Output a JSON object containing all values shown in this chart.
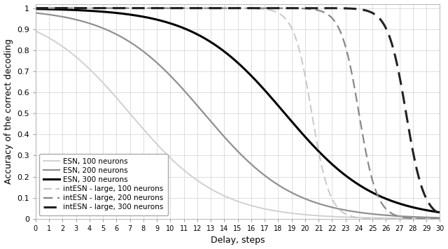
{
  "title": "",
  "xlabel": "Delay, steps",
  "ylabel": "Accuracy of the correct decoding",
  "xlim": [
    0,
    30
  ],
  "ylim": [
    0,
    1.02
  ],
  "yticks": [
    0,
    0.1,
    0.2,
    0.3,
    0.4,
    0.5,
    0.6,
    0.7,
    0.8,
    0.9,
    1.0
  ],
  "ytick_labels": [
    "0",
    "0.1",
    "0.2",
    "0.3",
    "0.4",
    "0.5",
    "0.6",
    "0.7",
    "0.8",
    "0.9",
    "1"
  ],
  "xticks": [
    0,
    1,
    2,
    3,
    4,
    5,
    6,
    7,
    8,
    9,
    10,
    11,
    12,
    13,
    14,
    15,
    16,
    17,
    18,
    19,
    20,
    21,
    22,
    23,
    24,
    25,
    26,
    27,
    28,
    29,
    30
  ],
  "series": [
    {
      "label": "ESN, 100 neurons",
      "color": "#d0d0d0",
      "lw": 1.4,
      "ls": "solid",
      "midpoint": 7.0,
      "steepness": 0.3
    },
    {
      "label": "ESN, 200 neurons",
      "color": "#909090",
      "lw": 1.6,
      "ls": "solid",
      "midpoint": 12.5,
      "steepness": 0.3
    },
    {
      "label": "ESN, 300 neurons",
      "color": "#000000",
      "lw": 2.2,
      "ls": "solid",
      "midpoint": 18.5,
      "steepness": 0.3
    },
    {
      "label": "intESN - large, 100 neurons",
      "color": "#c8c8c8",
      "lw": 1.4,
      "ls": "dashed",
      "midpoint": 20.5,
      "steepness": 1.5
    },
    {
      "label": "intESN - large, 200 neurons",
      "color": "#888888",
      "lw": 1.6,
      "ls": "dashed",
      "midpoint": 24.0,
      "steepness": 1.5
    },
    {
      "label": "intESN - large, 300 neurons",
      "color": "#222222",
      "lw": 2.2,
      "ls": "dashed",
      "midpoint": 27.5,
      "steepness": 1.5
    }
  ],
  "background_color": "#ffffff",
  "grid_color": "#d0d0d0",
  "legend_loc": "lower left",
  "legend_fontsize": 7.5
}
